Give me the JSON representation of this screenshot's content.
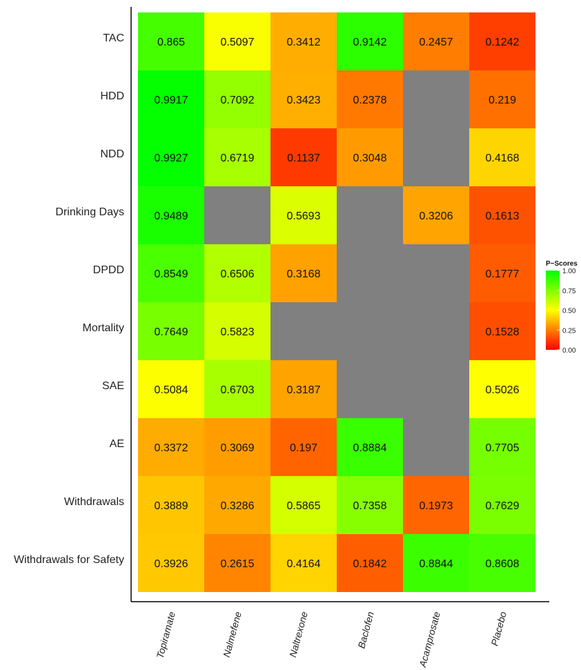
{
  "chart_data": {
    "type": "heatmap",
    "rows": [
      "TAC",
      "HDD",
      "NDD",
      "Drinking Days",
      "DPDD",
      "Mortality",
      "SAE",
      "AE",
      "Withdrawals",
      "Withdrawals for Safety"
    ],
    "columns": [
      "Topiramate",
      "Nalmefene",
      "Naltrexone",
      "Baclofen",
      "Acamprosate",
      "Placebo"
    ],
    "values": [
      [
        0.865,
        0.5097,
        0.3412,
        0.9142,
        0.2457,
        0.1242
      ],
      [
        0.9917,
        0.7092,
        0.3423,
        0.2378,
        null,
        0.219
      ],
      [
        0.9927,
        0.6719,
        0.1137,
        0.3048,
        null,
        0.4168
      ],
      [
        0.9489,
        null,
        0.5693,
        null,
        0.3206,
        0.1613
      ],
      [
        0.8549,
        0.6506,
        0.3168,
        null,
        null,
        0.1777
      ],
      [
        0.7649,
        0.5823,
        null,
        null,
        null,
        0.1528
      ],
      [
        0.5084,
        0.6703,
        0.3187,
        null,
        null,
        0.5026
      ],
      [
        0.3372,
        0.3069,
        0.197,
        0.8884,
        null,
        0.7705
      ],
      [
        0.3889,
        0.3286,
        0.5865,
        0.7358,
        0.1973,
        0.7629
      ],
      [
        0.3926,
        0.2615,
        0.4164,
        0.1842,
        0.8844,
        0.8608
      ]
    ],
    "value_labels": [
      [
        "0.865",
        "0.5097",
        "0.3412",
        "0.9142",
        "0.2457",
        "0.1242"
      ],
      [
        "0.9917",
        "0.7092",
        "0.3423",
        "0.2378",
        "",
        "0.219"
      ],
      [
        "0.9927",
        "0.6719",
        "0.1137",
        "0.3048",
        "",
        "0.4168"
      ],
      [
        "0.9489",
        "",
        "0.5693",
        "",
        "0.3206",
        "0.1613"
      ],
      [
        "0.8549",
        "0.6506",
        "0.3168",
        "",
        "",
        "0.1777"
      ],
      [
        "0.7649",
        "0.5823",
        "",
        "",
        "",
        "0.1528"
      ],
      [
        "0.5084",
        "0.6703",
        "0.3187",
        "",
        "",
        "0.5026"
      ],
      [
        "0.3372",
        "0.3069",
        "0.197",
        "0.8884",
        "",
        "0.7705"
      ],
      [
        "0.3889",
        "0.3286",
        "0.5865",
        "0.7358",
        "0.1973",
        "0.7629"
      ],
      [
        "0.3926",
        "0.2615",
        "0.4164",
        "0.1842",
        "0.8844",
        "0.8608"
      ]
    ],
    "missing_color": "#808080",
    "color_scale": {
      "range": [
        0,
        1
      ],
      "stops": [
        {
          "value": 0.0,
          "color": "#ff0000"
        },
        {
          "value": 0.5,
          "color": "#ffff00"
        },
        {
          "value": 1.0,
          "color": "#00ff00"
        }
      ]
    },
    "legend": {
      "title": "P−Scores",
      "ticks": [
        "1.00",
        "0.75",
        "0.50",
        "0.25",
        "0.00"
      ],
      "tick_values": [
        1.0,
        0.75,
        0.5,
        0.25,
        0.0
      ],
      "placement": "right"
    },
    "title": "",
    "xlabel": "",
    "ylabel": ""
  }
}
